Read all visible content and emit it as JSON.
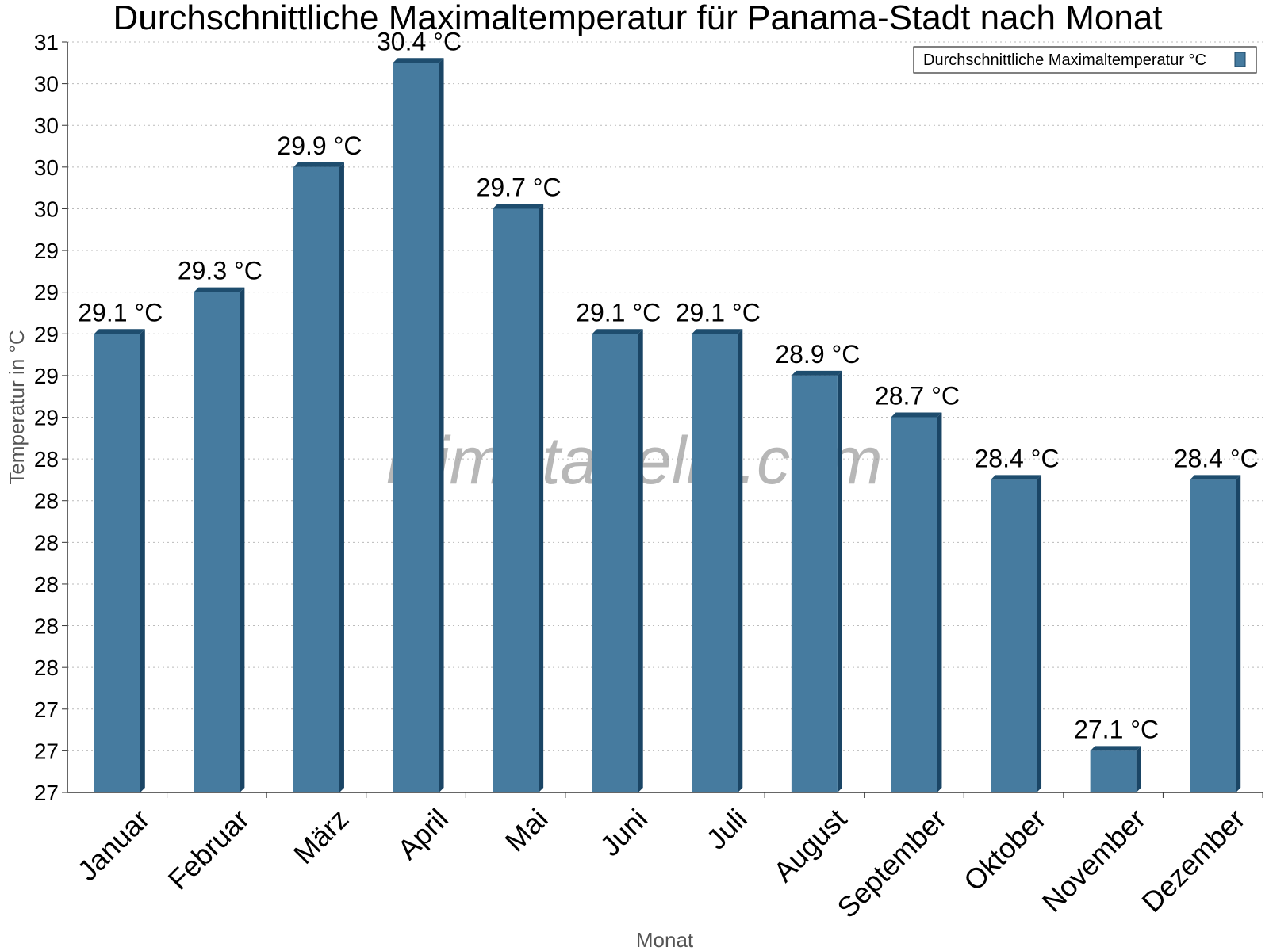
{
  "colors": {
    "bar_face": "#467b9f",
    "bar_top": "#1e4d6e",
    "bar_side": "#1a4565",
    "grid": "#bbbbbb",
    "axis": "#333333"
  },
  "watermark": "klimatabelle.com",
  "chart_data": {
    "type": "bar",
    "title": "Durchschnittliche Maximaltemperatur für Panama-Stadt nach Monat",
    "xlabel": "Monat",
    "ylabel": "Temperatur in °C",
    "categories": [
      "Januar",
      "Februar",
      "März",
      "April",
      "Mai",
      "Juni",
      "Juli",
      "August",
      "September",
      "Oktober",
      "November",
      "Dezember"
    ],
    "series": [
      {
        "name": "Durchschnittliche Maximaltemperatur °C",
        "values": [
          29.1,
          29.3,
          29.9,
          30.4,
          29.7,
          29.1,
          29.1,
          28.9,
          28.7,
          28.4,
          27.1,
          28.4
        ],
        "labels": [
          "29.1 °C",
          "29.3 °C",
          "29.9 °C",
          "30.4 °C",
          "29.7 °C",
          "29.1 °C",
          "29.1 °C",
          "28.9 °C",
          "28.7 °C",
          "28.4 °C",
          "27.1 °C",
          "28.4 °C"
        ]
      }
    ],
    "ylim": [
      26.9,
      30.5
    ],
    "yticks": {
      "values": [
        26.9,
        27.1,
        27.3,
        27.5,
        27.7,
        27.9,
        28.1,
        28.3,
        28.5,
        28.7,
        28.9,
        29.1,
        29.3,
        29.5,
        29.7,
        29.9,
        30.1,
        30.3,
        30.5
      ],
      "labels": [
        "27",
        "27",
        "27",
        "28",
        "28",
        "28",
        "28",
        "28",
        "28",
        "29",
        "29",
        "29",
        "29",
        "29",
        "30",
        "30",
        "30",
        "30",
        "31"
      ]
    },
    "grid": true,
    "legend": "top-right"
  }
}
